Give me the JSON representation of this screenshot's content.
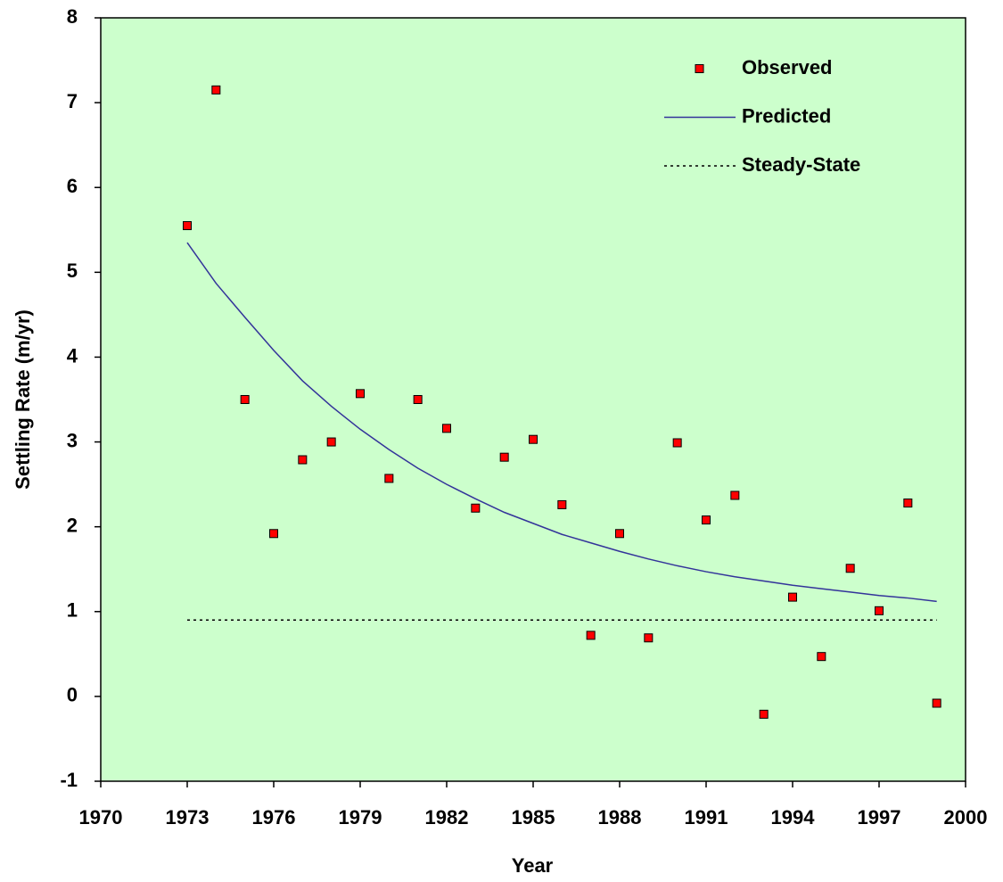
{
  "chart_data": {
    "type": "scatter",
    "x_label": "Year",
    "y_label": "Settling Rate (m/yr)",
    "x": [
      1973,
      1974,
      1975,
      1976,
      1977,
      1978,
      1979,
      1980,
      1981,
      1982,
      1983,
      1984,
      1985,
      1986,
      1987,
      1988,
      1989,
      1990,
      1991,
      1992,
      1993,
      1994,
      1995,
      1996,
      1997,
      1998,
      1999
    ],
    "series": [
      {
        "name": "Observed",
        "style": "marker",
        "color": "#ff0000",
        "values": [
          5.55,
          7.15,
          3.5,
          1.92,
          2.79,
          3.0,
          3.57,
          2.57,
          3.5,
          3.16,
          2.22,
          2.82,
          3.03,
          2.26,
          0.72,
          1.92,
          0.69,
          2.99,
          2.08,
          2.37,
          -0.21,
          1.17,
          0.47,
          1.51,
          1.01,
          2.28,
          -0.08
        ]
      },
      {
        "name": "Predicted",
        "style": "line",
        "color": "#33339a",
        "values": [
          5.35,
          4.87,
          4.47,
          4.08,
          3.72,
          3.42,
          3.15,
          2.91,
          2.69,
          2.5,
          2.33,
          2.17,
          2.04,
          1.91,
          1.81,
          1.71,
          1.62,
          1.54,
          1.47,
          1.41,
          1.36,
          1.31,
          1.27,
          1.23,
          1.19,
          1.16,
          1.12
        ]
      },
      {
        "name": "Steady-State",
        "style": "dotted",
        "color": "#000000",
        "values": [
          0.9,
          0.9,
          0.9,
          0.9,
          0.9,
          0.9,
          0.9,
          0.9,
          0.9,
          0.9,
          0.9,
          0.9,
          0.9,
          0.9,
          0.9,
          0.9,
          0.9,
          0.9,
          0.9,
          0.9,
          0.9,
          0.9,
          0.9,
          0.9,
          0.9,
          0.9,
          0.9
        ]
      }
    ],
    "xlim": [
      1970,
      2000
    ],
    "xticks": [
      1970,
      1973,
      1976,
      1979,
      1982,
      1985,
      1988,
      1991,
      1994,
      1997,
      2000
    ],
    "ylim": [
      -1,
      8
    ],
    "yticks": [
      -1,
      0,
      1,
      2,
      3,
      4,
      5,
      6,
      7,
      8
    ],
    "background": "#ccffcc",
    "legend": "top-right"
  }
}
